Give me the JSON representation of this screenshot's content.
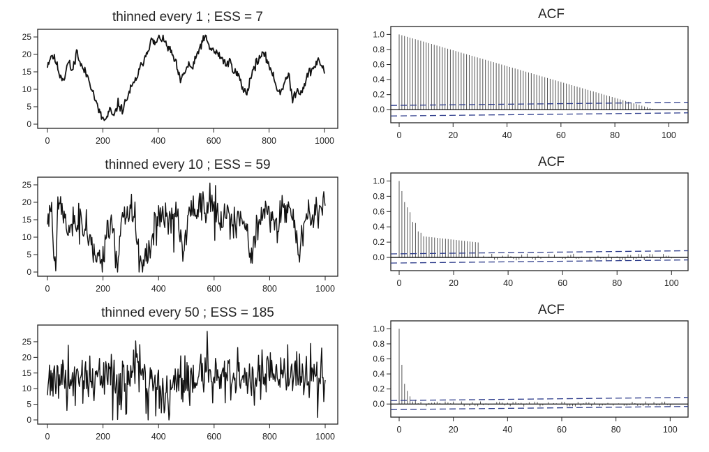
{
  "chart_data": [
    {
      "type": "line",
      "title": "thinned every 1 ; ESS =  7",
      "xlabel": "",
      "ylabel": "",
      "xlim": [
        0,
        1000
      ],
      "ylim": [
        0,
        26
      ],
      "xticks": [
        0,
        200,
        400,
        600,
        800,
        1000
      ],
      "yticks": [
        0,
        5,
        10,
        15,
        20,
        25
      ],
      "profile_x": [
        0,
        15,
        30,
        45,
        60,
        75,
        90,
        105,
        120,
        135,
        150,
        165,
        180,
        195,
        210,
        225,
        240,
        255,
        270,
        285,
        300,
        315,
        330,
        345,
        360,
        375,
        390,
        405,
        420,
        435,
        450,
        465,
        480,
        495,
        510,
        525,
        540,
        555,
        570,
        585,
        600,
        615,
        630,
        645,
        660,
        675,
        690,
        705,
        720,
        735,
        750,
        765,
        780,
        795,
        810,
        825,
        840,
        855,
        870,
        885,
        900,
        915,
        930,
        945,
        960,
        975,
        990,
        1000
      ],
      "profile_y": [
        17,
        20,
        18,
        14,
        13,
        18,
        15,
        21,
        17,
        15,
        13,
        9,
        5,
        2,
        1,
        4,
        2,
        6,
        4,
        7,
        10,
        12,
        15,
        18,
        21,
        24,
        23,
        25,
        24,
        22,
        20,
        17,
        12,
        15,
        17,
        16,
        20,
        23,
        25,
        22,
        21,
        20,
        19,
        17,
        18,
        15,
        14,
        10,
        9,
        14,
        17,
        19,
        20,
        18,
        15,
        11,
        9,
        12,
        14,
        7,
        10,
        9,
        12,
        15,
        16,
        18,
        17,
        15
      ],
      "noise": 1.0,
      "seed": 11
    },
    {
      "type": "bar",
      "title": "ACF",
      "xlabel": "",
      "ylabel": "",
      "xlim": [
        0,
        103
      ],
      "ylim": [
        -0.1,
        1.05
      ],
      "xticks": [
        0,
        20,
        40,
        60,
        80,
        100
      ],
      "yticks": [
        "0.0",
        "0.2",
        "0.4",
        "0.6",
        "0.8",
        "1.0"
      ],
      "lags": 100,
      "acf_model": "linear",
      "acf_param": 95,
      "tail_noise": 0.0,
      "ci": 0.07
    },
    {
      "type": "line",
      "title": "thinned every 10 ; ESS =  59",
      "xlabel": "",
      "ylabel": "",
      "xlim": [
        0,
        1000
      ],
      "ylim": [
        0,
        26
      ],
      "xticks": [
        0,
        200,
        400,
        600,
        800,
        1000
      ],
      "yticks": [
        0,
        5,
        10,
        15,
        20,
        25
      ],
      "profile_x": [
        0,
        15,
        25,
        40,
        55,
        70,
        90,
        110,
        130,
        150,
        170,
        190,
        210,
        230,
        250,
        270,
        290,
        310,
        330,
        350,
        370,
        390,
        410,
        430,
        450,
        470,
        490,
        510,
        530,
        550,
        570,
        590,
        610,
        630,
        650,
        670,
        690,
        710,
        730,
        750,
        770,
        790,
        810,
        830,
        850,
        870,
        890,
        905,
        920,
        940,
        960,
        980,
        1000
      ],
      "profile_y": [
        15,
        18,
        3,
        20,
        19,
        12,
        14,
        15,
        13,
        10,
        5,
        4,
        10,
        15,
        3,
        14,
        17,
        18,
        3,
        2,
        8,
        17,
        16,
        15,
        12,
        16,
        5,
        18,
        17,
        20,
        19,
        21,
        16,
        14,
        17,
        14,
        18,
        14,
        4,
        10,
        16,
        18,
        15,
        14,
        17,
        19,
        13,
        2,
        15,
        17,
        16,
        18,
        17
      ],
      "noise": 3.2,
      "seed": 23
    },
    {
      "type": "bar",
      "title": "ACF",
      "xlabel": "",
      "ylabel": "",
      "xlim": [
        0,
        103
      ],
      "ylim": [
        -0.1,
        1.05
      ],
      "xticks": [
        0,
        20,
        40,
        60,
        80,
        100
      ],
      "yticks": [
        "0.0",
        "0.2",
        "0.4",
        "0.6",
        "0.8",
        "1.0"
      ],
      "lags": 100,
      "acf_model": "decay",
      "acf_param": 7,
      "tail_noise": 0.05,
      "ci": 0.06
    },
    {
      "type": "line",
      "title": "thinned every 50 ; ESS =  185",
      "xlabel": "",
      "ylabel": "",
      "xlim": [
        0,
        1000
      ],
      "ylim": [
        0,
        29
      ],
      "xticks": [
        0,
        200,
        400,
        600,
        800,
        1000
      ],
      "yticks": [
        0,
        5,
        10,
        15,
        20,
        25
      ],
      "profile_x": [
        0,
        100,
        200,
        300,
        400,
        420,
        500,
        600,
        700,
        800,
        900,
        1000
      ],
      "profile_y": [
        14,
        13,
        13,
        14,
        12,
        6,
        14,
        15,
        15,
        14,
        14,
        14
      ],
      "noise": 5.5,
      "seed": 37
    },
    {
      "type": "bar",
      "title": "ACF",
      "xlabel": "",
      "ylabel": "",
      "xlim": [
        0,
        103
      ],
      "ylim": [
        -0.1,
        1.05
      ],
      "xticks": [
        0,
        20,
        40,
        60,
        80,
        100
      ],
      "yticks": [
        "0.0",
        "0.2",
        "0.4",
        "0.6",
        "0.8",
        "1.0"
      ],
      "lags": 100,
      "acf_model": "decay",
      "acf_param": 1.6,
      "tail_noise": 0.035,
      "ci": 0.06
    }
  ]
}
